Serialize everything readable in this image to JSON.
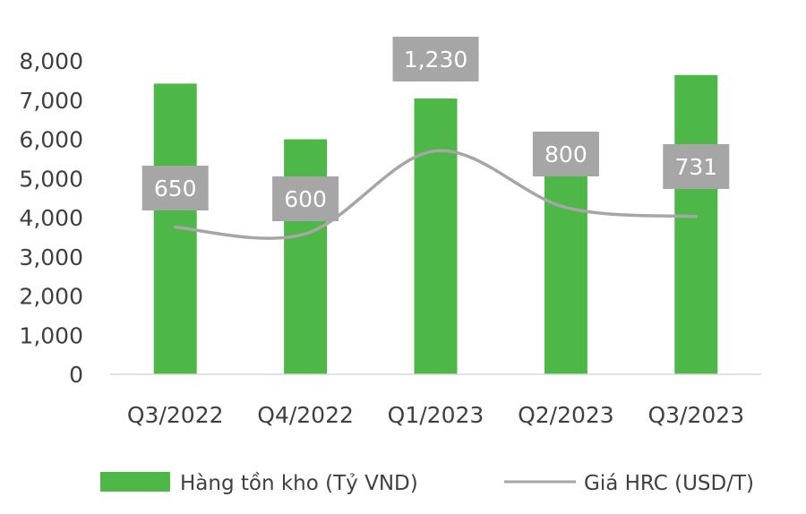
{
  "chart_data": {
    "type": "bar",
    "categories": [
      "Q3/2022",
      "Q4/2022",
      "Q1/2023",
      "Q2/2023",
      "Q3/2023"
    ],
    "ylim": [
      0,
      8000
    ],
    "yticks": [
      "0",
      "1,000",
      "2,000",
      "3,000",
      "4,000",
      "5,000",
      "6,000",
      "7,000",
      "8,000"
    ],
    "grid": false,
    "legend_position": "bottom",
    "series": [
      {
        "name": "Hàng tồn kho (Tỷ VND)",
        "type": "bar",
        "color": "#4db748",
        "values": [
          7420,
          6000,
          7040,
          5320,
          7640
        ]
      },
      {
        "name": "Giá HRC (USD/T)",
        "type": "line",
        "color": "#a6a6a6",
        "values": [
          650,
          600,
          1230,
          800,
          731
        ],
        "data_labels": [
          "650",
          "600",
          "1,230",
          "800",
          "731"
        ]
      }
    ]
  }
}
